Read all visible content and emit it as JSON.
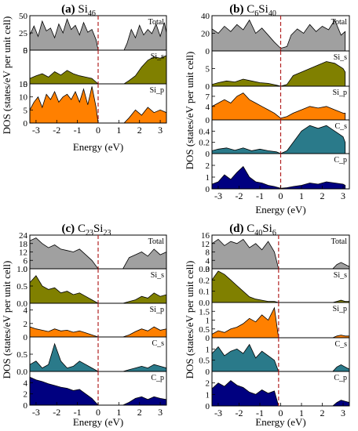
{
  "figure": {
    "description": ""
  },
  "chart_data": [
    {
      "type": "area",
      "title_letter": "(a)",
      "title_parts": [
        [
          "Si",
          ""
        ],
        [
          "46",
          "sub"
        ]
      ],
      "xlabel": "Energy (eV)",
      "ylabel": "DOS (states/eV per unit cell)",
      "xlim": [
        -3.3,
        3.3
      ],
      "x_ticks": [
        -3,
        -2,
        -1,
        0,
        1,
        2,
        3
      ],
      "fermi_level": 0,
      "panels": [
        {
          "name": "Total",
          "color": "#a0a0a0",
          "ylim": [
            0,
            50
          ],
          "y_ticks": [
            "0",
            "25",
            "50"
          ],
          "x": [
            -3.3,
            -3.1,
            -2.9,
            -2.7,
            -2.5,
            -2.3,
            -2.1,
            -1.9,
            -1.7,
            -1.5,
            -1.3,
            -1.1,
            -0.9,
            -0.7,
            -0.5,
            -0.3,
            -0.1,
            0.0,
            1.25,
            1.4,
            1.6,
            1.8,
            2.0,
            2.2,
            2.4,
            2.6,
            2.8,
            3.0,
            3.2,
            3.3
          ],
          "y": [
            22,
            35,
            20,
            42,
            28,
            32,
            18,
            38,
            25,
            45,
            30,
            36,
            22,
            40,
            26,
            30,
            15,
            0,
            0,
            10,
            30,
            18,
            36,
            22,
            30,
            24,
            38,
            20,
            40,
            25
          ]
        },
        {
          "name": "Si_s",
          "color": "#808000",
          "ylim": [
            0,
            5
          ],
          "y_ticks": [
            "0",
            "5"
          ],
          "x": [
            -3.3,
            -3.0,
            -2.7,
            -2.4,
            -2.1,
            -1.8,
            -1.5,
            -1.2,
            -0.9,
            -0.6,
            -0.3,
            0.0,
            1.25,
            1.5,
            1.8,
            2.1,
            2.4,
            2.7,
            3.0,
            3.3
          ],
          "y": [
            0.8,
            1.2,
            1.5,
            1.0,
            1.8,
            1.3,
            2.0,
            1.5,
            1.2,
            1.0,
            0.8,
            0,
            0,
            0.5,
            1.2,
            2.5,
            3.5,
            4.0,
            3.8,
            4.2
          ]
        },
        {
          "name": "Si_p",
          "color": "#ff8000",
          "ylim": [
            0,
            15
          ],
          "y_ticks": [
            "0",
            "5",
            "10",
            "15"
          ],
          "x": [
            -3.3,
            -3.1,
            -2.9,
            -2.7,
            -2.5,
            -2.3,
            -2.1,
            -1.9,
            -1.7,
            -1.5,
            -1.3,
            -1.1,
            -0.9,
            -0.7,
            -0.5,
            -0.3,
            -0.1,
            0.0,
            1.25,
            1.5,
            1.8,
            2.1,
            2.4,
            2.7,
            3.0,
            3.3
          ],
          "y": [
            5,
            8,
            10,
            6,
            11,
            9,
            12,
            8,
            10,
            11,
            9,
            12,
            8,
            13,
            7,
            14,
            6,
            0,
            0,
            2,
            5,
            3,
            6,
            4,
            5,
            4
          ]
        }
      ]
    },
    {
      "type": "area",
      "title_letter": "(b)",
      "title_parts": [
        [
          "C",
          ""
        ],
        [
          "6",
          "sub"
        ],
        [
          "Si",
          ""
        ],
        [
          "40",
          "sub"
        ]
      ],
      "xlabel": "Energy (eV)",
      "ylabel": "DOS (states/eV per unit cell)",
      "xlim": [
        -3.3,
        3.3
      ],
      "x_ticks": [
        -3,
        -2,
        -1,
        0,
        1,
        2,
        3
      ],
      "fermi_level": 0,
      "panels": [
        {
          "name": "Total",
          "color": "#a0a0a0",
          "ylim": [
            0,
            40
          ],
          "y_ticks": [
            "0",
            "20",
            "40"
          ],
          "x": [
            -3.3,
            -3.0,
            -2.7,
            -2.4,
            -2.1,
            -1.8,
            -1.5,
            -1.2,
            -0.9,
            -0.6,
            -0.3,
            0.0,
            0.3,
            0.5,
            0.8,
            1.1,
            1.4,
            1.7,
            2.0,
            2.3,
            2.6,
            2.9,
            3.1
          ],
          "y": [
            25,
            20,
            28,
            22,
            30,
            24,
            35,
            20,
            26,
            18,
            10,
            3,
            5,
            18,
            25,
            20,
            30,
            22,
            28,
            24,
            35,
            18,
            22
          ]
        },
        {
          "name": "Si_s",
          "color": "#808000",
          "ylim": [
            0,
            10
          ],
          "y_ticks": [
            "0",
            "5"
          ],
          "x": [
            -3.3,
            -3.0,
            -2.6,
            -2.2,
            -1.8,
            -1.4,
            -1.0,
            -0.6,
            -0.2,
            0.0,
            0.3,
            0.6,
            1.0,
            1.4,
            1.8,
            2.2,
            2.6,
            3.0,
            3.1
          ],
          "y": [
            0.5,
            1,
            1.5,
            1.2,
            2,
            1.5,
            1,
            0.8,
            0.3,
            0,
            0.5,
            3,
            4,
            5,
            6,
            7,
            6.5,
            5,
            4
          ]
        },
        {
          "name": "Si_p",
          "color": "#ff8000",
          "ylim": [
            0,
            10
          ],
          "y_ticks": [
            "0",
            "4",
            "7"
          ],
          "x": [
            -3.3,
            -3.0,
            -2.7,
            -2.4,
            -2.1,
            -1.8,
            -1.5,
            -1.2,
            -0.9,
            -0.6,
            -0.3,
            0.0,
            0.3,
            0.6,
            1.0,
            1.4,
            1.8,
            2.2,
            2.6,
            3.0,
            3.1
          ],
          "y": [
            4,
            5,
            6,
            5,
            7,
            8,
            6,
            5,
            4,
            3,
            2,
            0.5,
            1,
            2,
            3,
            4,
            3.5,
            4,
            3,
            2,
            2
          ]
        },
        {
          "name": "C_s",
          "color": "#2a7a8a",
          "ylim": [
            0,
            0.6
          ],
          "y_ticks": [
            "0",
            "0.2",
            "0.4"
          ],
          "x": [
            -3.3,
            -3.0,
            -2.6,
            -2.2,
            -1.8,
            -1.4,
            -1.0,
            -0.6,
            -0.2,
            0.0,
            0.3,
            0.6,
            1.0,
            1.4,
            1.8,
            2.2,
            2.6,
            3.0,
            3.1
          ],
          "y": [
            0.05,
            0.08,
            0.1,
            0.06,
            0.1,
            0.05,
            0.08,
            0.05,
            0.03,
            0,
            0.05,
            0.2,
            0.4,
            0.5,
            0.45,
            0.5,
            0.4,
            0.3,
            0.2
          ]
        },
        {
          "name": "C_p",
          "color": "#000080",
          "ylim": [
            0,
            3
          ],
          "y_ticks": [
            "0",
            "1",
            "2"
          ],
          "x": [
            -3.3,
            -3.0,
            -2.7,
            -2.4,
            -2.1,
            -1.8,
            -1.5,
            -1.2,
            -0.9,
            -0.6,
            -0.3,
            0.0,
            0.3,
            0.6,
            1.0,
            1.4,
            1.8,
            2.2,
            2.6,
            3.0,
            3.1
          ],
          "y": [
            0.4,
            0.6,
            1.2,
            0.8,
            1.4,
            1.9,
            1.0,
            0.6,
            0.5,
            0.3,
            0.2,
            0.05,
            0.1,
            0.2,
            0.3,
            0.5,
            0.4,
            0.6,
            0.5,
            0.4,
            0.3
          ]
        }
      ]
    },
    {
      "type": "area",
      "title_letter": "(c)",
      "title_parts": [
        [
          "C",
          ""
        ],
        [
          "23",
          "sub"
        ],
        [
          "Si",
          ""
        ],
        [
          "23",
          "sub"
        ]
      ],
      "xlabel": "Energy (eV)",
      "ylabel": "DOS (states/eV per unit cell)",
      "xlim": [
        -3.3,
        3.3
      ],
      "x_ticks": [
        -3,
        -2,
        -1,
        0,
        1,
        2,
        3
      ],
      "fermi_level": 0,
      "panels": [
        {
          "name": "Total",
          "color": "#a0a0a0",
          "ylim": [
            0,
            24
          ],
          "y_ticks": [
            "0",
            "6",
            "12",
            "18",
            "24"
          ],
          "x": [
            -3.3,
            -3.0,
            -2.7,
            -2.4,
            -2.1,
            -1.8,
            -1.5,
            -1.2,
            -0.9,
            -0.6,
            -0.3,
            0.0,
            1.2,
            1.5,
            1.8,
            2.1,
            2.4,
            2.7,
            3.0,
            3.3
          ],
          "y": [
            20,
            22,
            18,
            15,
            17,
            14,
            13,
            12,
            14,
            10,
            6,
            0,
            0,
            8,
            10,
            12,
            9,
            14,
            10,
            12
          ]
        },
        {
          "name": "Si_s",
          "color": "#808000",
          "ylim": [
            0,
            1.0
          ],
          "y_ticks": [
            "0.0",
            "0.5",
            "1.0"
          ],
          "x": [
            -3.3,
            -3.0,
            -2.7,
            -2.4,
            -2.1,
            -1.8,
            -1.5,
            -1.2,
            -0.9,
            -0.6,
            -0.3,
            0.0,
            1.2,
            1.5,
            1.8,
            2.1,
            2.4,
            2.7,
            3.0,
            3.3
          ],
          "y": [
            0.6,
            0.8,
            0.5,
            0.4,
            0.45,
            0.3,
            0.35,
            0.25,
            0.3,
            0.2,
            0.1,
            0,
            0,
            0.05,
            0.1,
            0.2,
            0.15,
            0.3,
            0.2,
            0.25
          ]
        },
        {
          "name": "Si_p",
          "color": "#ff8000",
          "ylim": [
            0,
            5
          ],
          "y_ticks": [
            "0",
            "2",
            "4"
          ],
          "x": [
            -3.3,
            -3.0,
            -2.7,
            -2.4,
            -2.1,
            -1.8,
            -1.5,
            -1.2,
            -0.9,
            -0.6,
            -0.3,
            0.0,
            1.2,
            1.5,
            1.8,
            2.1,
            2.4,
            2.7,
            3.0,
            3.3
          ],
          "y": [
            1.5,
            1.2,
            1.0,
            0.8,
            1.2,
            0.9,
            1.0,
            0.7,
            0.9,
            0.6,
            0.3,
            0,
            0,
            0.3,
            0.8,
            1.2,
            0.9,
            1.5,
            1.0,
            1.2
          ]
        },
        {
          "name": "C_s",
          "color": "#2a7a8a",
          "ylim": [
            0,
            1.0
          ],
          "y_ticks": [
            "0.0",
            "0.5"
          ],
          "x": [
            -3.3,
            -3.0,
            -2.7,
            -2.4,
            -2.1,
            -1.8,
            -1.5,
            -1.2,
            -0.9,
            -0.6,
            -0.3,
            0.0,
            1.2,
            1.5,
            1.8,
            2.1,
            2.4,
            2.7,
            3.0,
            3.3
          ],
          "y": [
            0.2,
            0.3,
            0.1,
            0.2,
            0.8,
            0.3,
            0.1,
            0.15,
            0.3,
            0.2,
            0.1,
            0,
            0,
            0.05,
            0.1,
            0.15,
            0.1,
            0.2,
            0.15,
            0.1
          ]
        },
        {
          "name": "C_p",
          "color": "#000080",
          "ylim": [
            0,
            6
          ],
          "y_ticks": [
            "0",
            "2",
            "4"
          ],
          "x": [
            -3.3,
            -3.0,
            -2.7,
            -2.4,
            -2.1,
            -1.8,
            -1.5,
            -1.2,
            -0.9,
            -0.6,
            -0.3,
            0.0,
            1.2,
            1.5,
            1.8,
            2.1,
            2.4,
            2.7,
            3.0,
            3.3
          ],
          "y": [
            5,
            4.5,
            4.2,
            3.8,
            3.5,
            3.2,
            3.0,
            2.6,
            2.8,
            2.0,
            1.2,
            0,
            0,
            0.5,
            1.2,
            1.5,
            1.0,
            1.5,
            1.2,
            1.0
          ]
        }
      ]
    },
    {
      "type": "area",
      "title_letter": "(d)",
      "title_parts": [
        [
          "C",
          ""
        ],
        [
          "40",
          "sub"
        ],
        [
          "Si",
          ""
        ],
        [
          "6",
          "sub"
        ]
      ],
      "xlabel": "Energy (eV)",
      "ylabel": "DOS (states/eV per unit cell)",
      "xlim": [
        -3.3,
        3.3
      ],
      "x_ticks": [
        -3,
        -2,
        -1,
        0,
        1,
        2,
        3
      ],
      "fermi_level": -0.1,
      "panels": [
        {
          "name": "Total",
          "color": "#a0a0a0",
          "ylim": [
            0,
            16
          ],
          "y_ticks": [
            "0",
            "4",
            "8",
            "12",
            "16"
          ],
          "x": [
            -3.3,
            -3.0,
            -2.7,
            -2.4,
            -2.1,
            -1.8,
            -1.5,
            -1.2,
            -0.9,
            -0.6,
            -0.3,
            -0.1,
            2.5,
            2.7,
            2.9,
            3.1,
            3.3
          ],
          "y": [
            12,
            14,
            11,
            13,
            12,
            14,
            10,
            12,
            9,
            13,
            8,
            0,
            0,
            2,
            3,
            2,
            1
          ]
        },
        {
          "name": "Si_s",
          "color": "#808000",
          "ylim": [
            0,
            0.3
          ],
          "y_ticks": [
            "0.0",
            "0.1",
            "0.2",
            "0.3"
          ],
          "x": [
            -3.3,
            -3.0,
            -2.7,
            -2.4,
            -2.1,
            -1.8,
            -1.5,
            -1.2,
            -0.9,
            -0.6,
            -0.3,
            -0.1,
            2.5,
            2.7,
            2.9,
            3.1,
            3.3
          ],
          "y": [
            0.2,
            0.28,
            0.25,
            0.2,
            0.15,
            0.1,
            0.05,
            0.03,
            0.02,
            0.01,
            0.01,
            0,
            0,
            0.01,
            0.02,
            0.01,
            0.01
          ]
        },
        {
          "name": "Si_p",
          "color": "#ff8000",
          "ylim": [
            0,
            2.0
          ],
          "y_ticks": [
            "0",
            "0.5",
            "1",
            "1.5"
          ],
          "x": [
            -3.3,
            -3.0,
            -2.7,
            -2.4,
            -2.1,
            -1.8,
            -1.5,
            -1.2,
            -0.9,
            -0.6,
            -0.3,
            -0.1,
            2.5,
            2.7,
            2.9,
            3.1,
            3.3
          ],
          "y": [
            0.2,
            0.4,
            0.3,
            0.5,
            0.6,
            0.8,
            1.1,
            0.9,
            1.3,
            1.0,
            1.7,
            0,
            0,
            0.1,
            0.15,
            0.1,
            0.1
          ]
        },
        {
          "name": "C_s",
          "color": "#2a7a8a",
          "ylim": [
            0,
            1.5
          ],
          "y_ticks": [
            "0",
            "0.5",
            "1"
          ],
          "x": [
            -3.3,
            -3.0,
            -2.7,
            -2.4,
            -2.1,
            -1.8,
            -1.5,
            -1.2,
            -0.9,
            -0.6,
            -0.3,
            -0.1,
            2.5,
            2.7,
            2.9,
            3.1,
            3.3
          ],
          "y": [
            0.8,
            1.1,
            0.7,
            0.9,
            1.0,
            0.8,
            1.2,
            0.6,
            0.9,
            0.7,
            0.5,
            0,
            0,
            0.2,
            0.3,
            0.2,
            0.1
          ]
        },
        {
          "name": "C_p",
          "color": "#000080",
          "ylim": [
            0,
            3
          ],
          "y_ticks": [
            "0",
            "1",
            "2"
          ],
          "x": [
            -3.3,
            -3.0,
            -2.7,
            -2.4,
            -2.1,
            -1.8,
            -1.5,
            -1.2,
            -0.9,
            -0.6,
            -0.3,
            -0.1,
            2.5,
            2.7,
            2.9,
            3.1,
            3.3
          ],
          "y": [
            1.5,
            2.0,
            1.7,
            2.2,
            1.8,
            1.6,
            1.2,
            1.0,
            1.4,
            1.1,
            1.3,
            0,
            0,
            0.3,
            0.5,
            0.4,
            0.3
          ]
        }
      ]
    }
  ]
}
